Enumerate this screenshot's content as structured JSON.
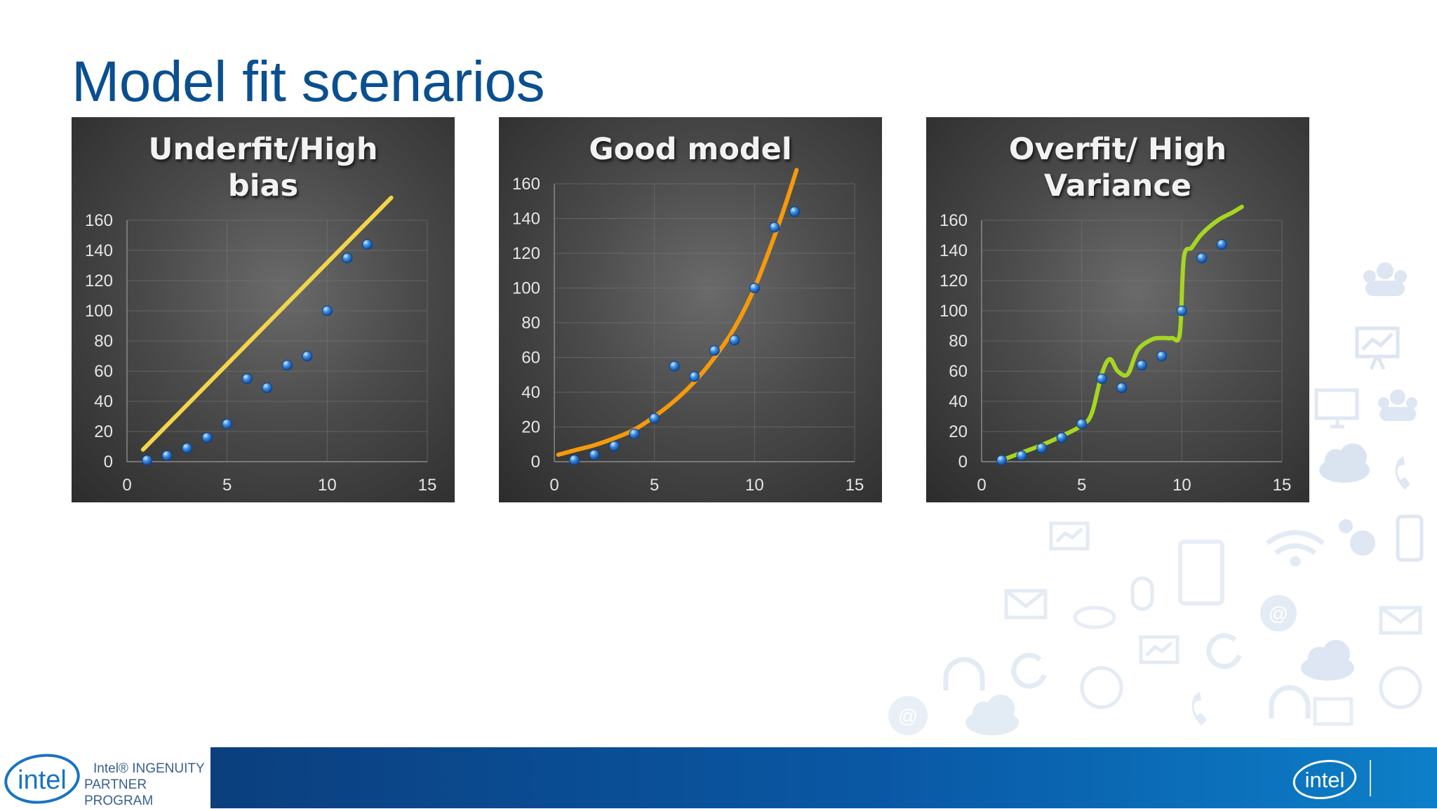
{
  "slide": {
    "title": "Model fit scenarios"
  },
  "colors": {
    "title": "#0a4f8f",
    "points": "#3d8fe6",
    "underfit_line": "#f2d54a",
    "good_curve": "#f59a0c",
    "overfit_curve": "#a6d622"
  },
  "chart_data": [
    {
      "type": "scatter",
      "title": "Underfit/High bias",
      "title_lines": [
        "Underfit/High",
        "bias"
      ],
      "x": [
        1,
        2,
        3,
        4,
        5,
        6,
        7,
        8,
        9,
        10,
        11,
        12
      ],
      "y": [
        1,
        4,
        9,
        16,
        25,
        55,
        49,
        64,
        70,
        100,
        135,
        144
      ],
      "fit": {
        "kind": "line",
        "x": [
          0.8,
          13.2
        ],
        "y": [
          8,
          175
        ]
      },
      "xlim": [
        0,
        15
      ],
      "ylim": [
        0,
        160
      ],
      "xticks": [
        "0",
        "5",
        "10",
        "15"
      ],
      "yticks": [
        "0",
        "20",
        "40",
        "60",
        "80",
        "100",
        "120",
        "140",
        "160"
      ],
      "grid": true
    },
    {
      "type": "scatter",
      "title": "Good model",
      "title_lines": [
        "Good model"
      ],
      "x": [
        1,
        2,
        3,
        4,
        5,
        6,
        7,
        8,
        9,
        10,
        11,
        12
      ],
      "y": [
        1,
        4,
        9,
        16,
        25,
        55,
        49,
        64,
        70,
        100,
        135,
        144
      ],
      "fit": {
        "kind": "curve",
        "x": [
          0.2,
          1,
          2,
          3,
          4,
          5,
          6,
          7,
          8,
          9,
          10,
          11,
          11.6,
          12.1
        ],
        "y": [
          4,
          6.5,
          9.5,
          13.5,
          18.5,
          26,
          35,
          46,
          60,
          77,
          100,
          130,
          150,
          168
        ]
      },
      "xlim": [
        0,
        15
      ],
      "ylim": [
        0,
        160
      ],
      "xticks": [
        "0",
        "5",
        "10",
        "15"
      ],
      "yticks": [
        "0",
        "20",
        "40",
        "60",
        "80",
        "100",
        "120",
        "140",
        "160"
      ],
      "grid": true
    },
    {
      "type": "scatter",
      "title": "Overfit/ High Variance",
      "title_lines": [
        "Overfit/ High",
        "Variance"
      ],
      "x": [
        1,
        2,
        3,
        4,
        5,
        6,
        7,
        8,
        9,
        10,
        11,
        12
      ],
      "y": [
        1,
        4,
        9,
        16,
        25,
        55,
        49,
        64,
        70,
        100,
        135,
        144
      ],
      "fit": {
        "kind": "curve",
        "x": [
          1,
          2,
          3,
          4,
          5,
          5.5,
          6,
          6.4,
          6.8,
          7.3,
          7.8,
          8.5,
          9,
          9.5,
          9.9,
          10.1,
          10.5,
          11,
          11.8,
          12.5,
          13
        ],
        "y": [
          1,
          6,
          11,
          17,
          24,
          32,
          58,
          68,
          60,
          58,
          74,
          81,
          82,
          82,
          85,
          135,
          142,
          151,
          160,
          165,
          169
        ]
      },
      "xlim": [
        0,
        15
      ],
      "ylim": [
        0,
        160
      ],
      "xticks": [
        "0",
        "5",
        "10",
        "15"
      ],
      "yticks": [
        "0",
        "20",
        "40",
        "60",
        "80",
        "100",
        "120",
        "140",
        "160"
      ],
      "grid": true
    }
  ],
  "footer": {
    "logo_text": "intel",
    "program_line1": "Intel® INGENUITY",
    "program_line2": "PARTNER PROGRAM"
  },
  "icons": [
    "people-icon",
    "presentation-icon",
    "monitor-icon",
    "cloud-icon",
    "phone-icon",
    "gear-icon",
    "tablet-icon",
    "wifi-icon",
    "mail-icon",
    "mouse-icon",
    "at-icon",
    "headset-icon",
    "refresh-icon",
    "globe-icon"
  ]
}
